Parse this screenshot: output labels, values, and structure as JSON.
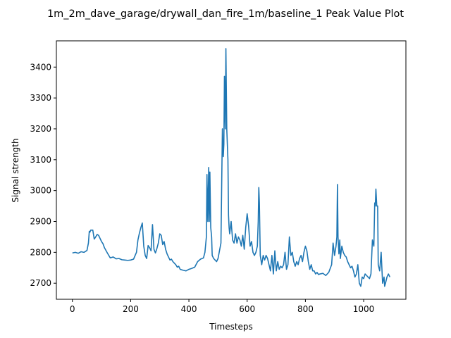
{
  "chart_data": {
    "type": "line",
    "title": "1m_2m_dave_garage/drywall_dan_fire_1m/baseline_1 Peak Value Plot",
    "xlabel": "Timesteps",
    "ylabel": "Signal strength",
    "xlim": [
      -55,
      1145
    ],
    "ylim": [
      2648,
      3485
    ],
    "xticks": [
      0,
      200,
      400,
      600,
      800,
      1000
    ],
    "yticks": [
      2700,
      2800,
      2900,
      3000,
      3100,
      3200,
      3300,
      3400
    ],
    "grid": false,
    "legend": "none",
    "line_color": "#1f77b4",
    "series": [
      {
        "x": [
          0,
          10,
          20,
          30,
          40,
          50,
          55,
          58,
          60,
          63,
          70,
          75,
          80,
          85,
          90,
          95,
          100,
          105,
          110,
          120,
          130,
          140,
          150,
          160,
          170,
          180,
          190,
          200,
          210,
          220,
          225,
          230,
          235,
          240,
          245,
          250,
          255,
          260,
          265,
          270,
          275,
          280,
          285,
          290,
          295,
          300,
          305,
          310,
          315,
          320,
          325,
          330,
          335,
          340,
          345,
          350,
          355,
          360,
          365,
          370,
          380,
          390,
          400,
          410,
          420,
          430,
          440,
          450,
          455,
          460,
          462,
          465,
          468,
          470,
          472,
          475,
          478,
          480,
          485,
          490,
          495,
          500,
          505,
          510,
          515,
          518,
          520,
          522,
          525,
          527,
          530,
          532,
          534,
          536,
          538,
          540,
          545,
          550,
          555,
          560,
          565,
          570,
          575,
          580,
          585,
          590,
          595,
          600,
          605,
          610,
          615,
          620,
          625,
          630,
          635,
          638,
          640,
          642,
          645,
          650,
          655,
          660,
          665,
          670,
          675,
          680,
          685,
          690,
          695,
          700,
          705,
          710,
          715,
          720,
          725,
          730,
          735,
          740,
          745,
          750,
          755,
          760,
          765,
          770,
          775,
          780,
          785,
          790,
          795,
          800,
          805,
          810,
          815,
          820,
          825,
          830,
          835,
          840,
          845,
          850,
          860,
          870,
          880,
          890,
          895,
          900,
          905,
          908,
          910,
          912,
          915,
          918,
          920,
          925,
          930,
          935,
          940,
          945,
          950,
          955,
          960,
          965,
          970,
          975,
          980,
          985,
          990,
          995,
          1000,
          1005,
          1010,
          1015,
          1020,
          1025,
          1030,
          1035,
          1038,
          1040,
          1042,
          1045,
          1048,
          1050,
          1055,
          1060,
          1065,
          1070,
          1072,
          1075,
          1080,
          1085,
          1090
        ],
        "y": [
          2798,
          2800,
          2797,
          2802,
          2800,
          2806,
          2830,
          2868,
          2865,
          2872,
          2872,
          2843,
          2850,
          2858,
          2855,
          2845,
          2835,
          2828,
          2815,
          2798,
          2782,
          2785,
          2779,
          2780,
          2776,
          2775,
          2774,
          2775,
          2778,
          2800,
          2840,
          2862,
          2880,
          2895,
          2820,
          2790,
          2780,
          2822,
          2815,
          2805,
          2890,
          2810,
          2798,
          2812,
          2830,
          2860,
          2855,
          2825,
          2835,
          2810,
          2795,
          2785,
          2775,
          2778,
          2770,
          2765,
          2760,
          2752,
          2755,
          2745,
          2742,
          2740,
          2745,
          2748,
          2752,
          2770,
          2778,
          2782,
          2800,
          2850,
          3052,
          2900,
          3075,
          2900,
          3060,
          2880,
          2850,
          2790,
          2780,
          2775,
          2770,
          2780,
          2805,
          2830,
          3200,
          3110,
          3150,
          3370,
          3200,
          3460,
          3200,
          3150,
          3100,
          2920,
          2880,
          2860,
          2900,
          2840,
          2830,
          2860,
          2830,
          2850,
          2840,
          2820,
          2855,
          2810,
          2880,
          2925,
          2885,
          2820,
          2835,
          2800,
          2790,
          2800,
          2820,
          2900,
          3010,
          2960,
          2790,
          2760,
          2790,
          2775,
          2790,
          2780,
          2760,
          2740,
          2790,
          2730,
          2805,
          2740,
          2770,
          2745,
          2755,
          2750,
          2760,
          2800,
          2745,
          2760,
          2850,
          2790,
          2800,
          2770,
          2755,
          2770,
          2760,
          2780,
          2790,
          2770,
          2800,
          2820,
          2805,
          2770,
          2745,
          2760,
          2740,
          2740,
          2730,
          2735,
          2728,
          2730,
          2732,
          2725,
          2735,
          2760,
          2830,
          2790,
          2820,
          2850,
          3020,
          2850,
          2795,
          2840,
          2780,
          2820,
          2800,
          2790,
          2785,
          2770,
          2760,
          2750,
          2755,
          2740,
          2720,
          2730,
          2760,
          2700,
          2690,
          2720,
          2715,
          2730,
          2725,
          2720,
          2715,
          2730,
          2840,
          2820,
          2960,
          2950,
          3005,
          2950,
          2950,
          2760,
          2740,
          2800,
          2700,
          2720,
          2690,
          2700,
          2720,
          2730,
          2720
        ]
      }
    ]
  }
}
